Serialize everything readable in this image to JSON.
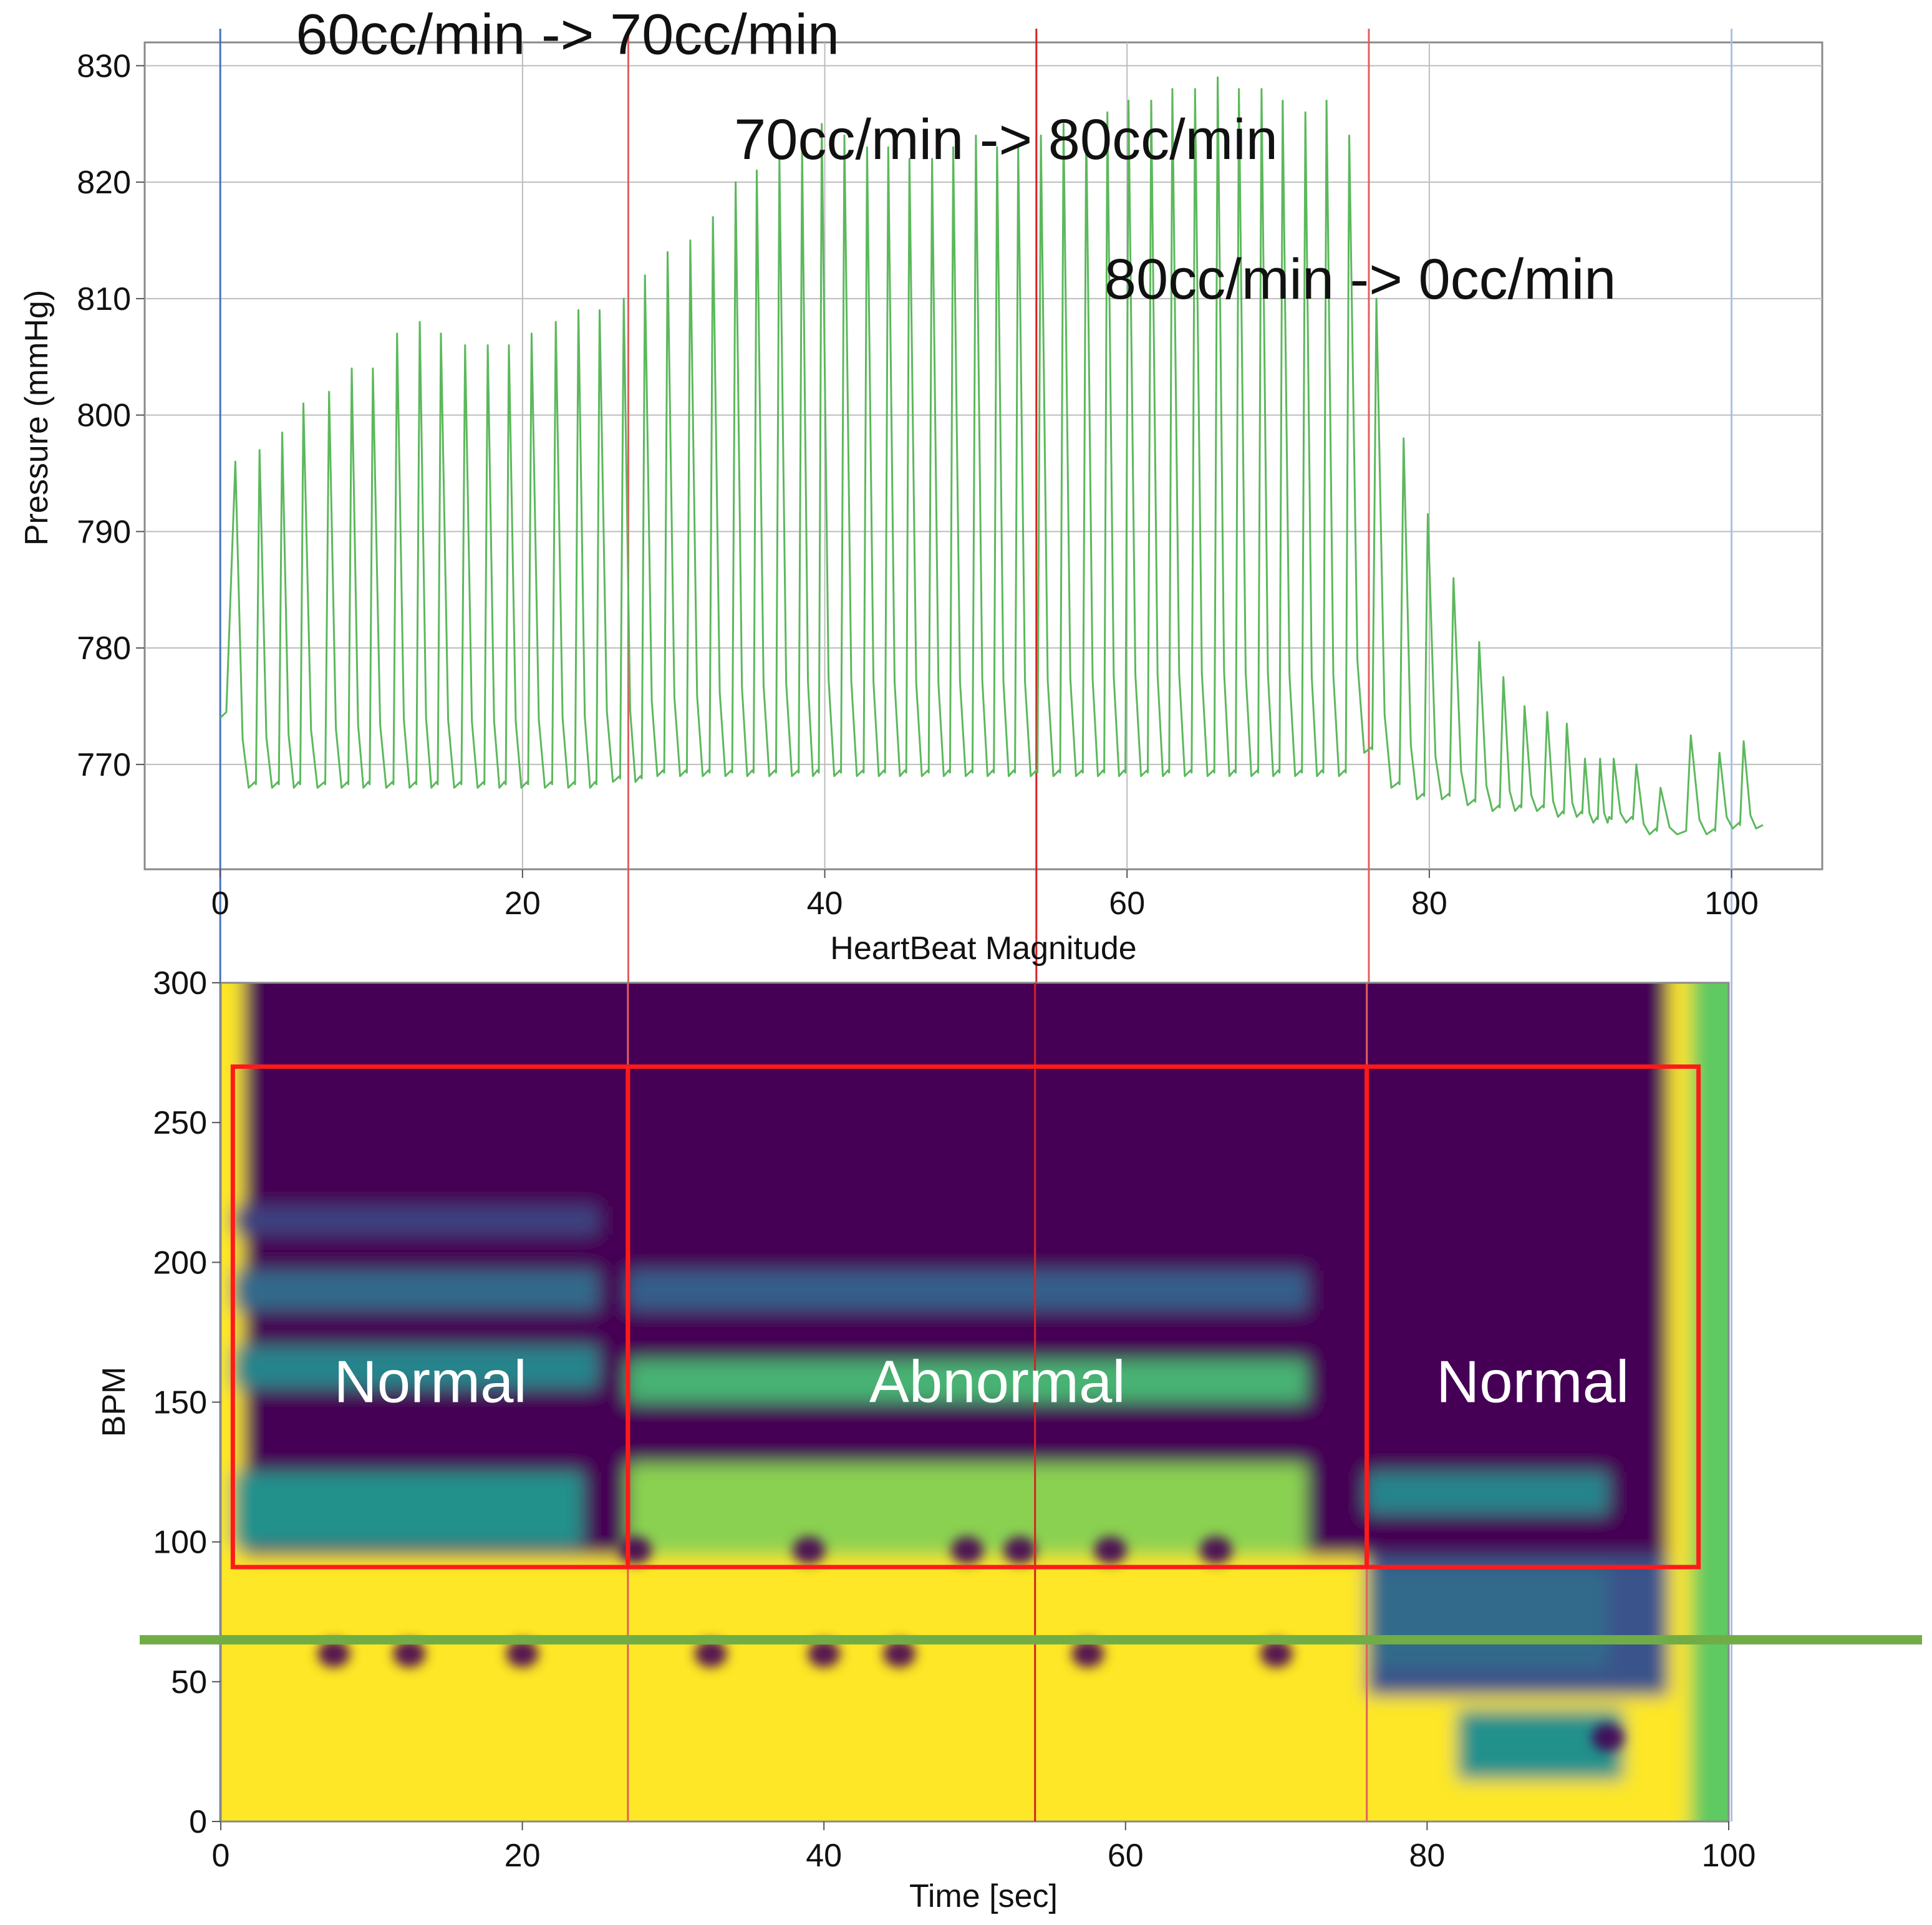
{
  "chart_data": [
    {
      "type": "line",
      "title": "",
      "xlabel": "HeartBeat Magnitude",
      "ylabel": "Pressure (mmHg)",
      "xlim": [
        -5,
        106
      ],
      "ylim": [
        761,
        832
      ],
      "x_ticks": [
        0,
        20,
        40,
        60,
        80,
        100
      ],
      "y_ticks": [
        770,
        780,
        790,
        800,
        810,
        820,
        830
      ],
      "grid": true,
      "series": [
        {
          "name": "pressure",
          "color": "#5cb85c",
          "beats": [
            {
              "t": 1,
              "peak": 796,
              "trough": 768
            },
            {
              "t": 2.6,
              "peak": 797,
              "trough": 768
            },
            {
              "t": 4.1,
              "peak": 798.5,
              "trough": 768
            },
            {
              "t": 5.5,
              "peak": 801,
              "trough": 768
            },
            {
              "t": 7.2,
              "peak": 802,
              "trough": 768
            },
            {
              "t": 8.7,
              "peak": 804,
              "trough": 768
            },
            {
              "t": 10.1,
              "peak": 804,
              "trough": 768
            },
            {
              "t": 11.7,
              "peak": 807,
              "trough": 768
            },
            {
              "t": 13.2,
              "peak": 808,
              "trough": 768
            },
            {
              "t": 14.6,
              "peak": 807,
              "trough": 768
            },
            {
              "t": 16.2,
              "peak": 806,
              "trough": 768
            },
            {
              "t": 17.7,
              "peak": 806,
              "trough": 768
            },
            {
              "t": 19.1,
              "peak": 806,
              "trough": 768
            },
            {
              "t": 20.6,
              "peak": 807,
              "trough": 768
            },
            {
              "t": 22.2,
              "peak": 808,
              "trough": 768
            },
            {
              "t": 23.7,
              "peak": 809,
              "trough": 768
            },
            {
              "t": 25.1,
              "peak": 809,
              "trough": 768.5
            },
            {
              "t": 26.7,
              "peak": 810,
              "trough": 768.5
            },
            {
              "t": 28.1,
              "peak": 812,
              "trough": 769
            },
            {
              "t": 29.6,
              "peak": 814,
              "trough": 769
            },
            {
              "t": 31.1,
              "peak": 815,
              "trough": 769
            },
            {
              "t": 32.6,
              "peak": 817,
              "trough": 769
            },
            {
              "t": 34.1,
              "peak": 820,
              "trough": 769
            },
            {
              "t": 35.5,
              "peak": 821,
              "trough": 769
            },
            {
              "t": 37,
              "peak": 822,
              "trough": 769
            },
            {
              "t": 38.5,
              "peak": 823,
              "trough": 769
            },
            {
              "t": 39.8,
              "peak": 825,
              "trough": 769
            },
            {
              "t": 41.3,
              "peak": 824,
              "trough": 769
            },
            {
              "t": 42.8,
              "peak": 823,
              "trough": 769
            },
            {
              "t": 44.2,
              "peak": 823,
              "trough": 769
            },
            {
              "t": 45.6,
              "peak": 822,
              "trough": 769
            },
            {
              "t": 47.1,
              "peak": 822,
              "trough": 769
            },
            {
              "t": 48.5,
              "peak": 823,
              "trough": 769
            },
            {
              "t": 50,
              "peak": 824,
              "trough": 769
            },
            {
              "t": 51.4,
              "peak": 823,
              "trough": 769
            },
            {
              "t": 52.8,
              "peak": 823,
              "trough": 769
            },
            {
              "t": 54.3,
              "peak": 824,
              "trough": 769
            },
            {
              "t": 55.8,
              "peak": 825,
              "trough": 769
            },
            {
              "t": 57.3,
              "peak": 825,
              "trough": 769
            },
            {
              "t": 58.7,
              "peak": 826,
              "trough": 769
            },
            {
              "t": 60.1,
              "peak": 827,
              "trough": 769
            },
            {
              "t": 61.6,
              "peak": 827,
              "trough": 769
            },
            {
              "t": 63,
              "peak": 828,
              "trough": 769
            },
            {
              "t": 64.5,
              "peak": 828,
              "trough": 769
            },
            {
              "t": 66,
              "peak": 829,
              "trough": 769
            },
            {
              "t": 67.4,
              "peak": 828,
              "trough": 769
            },
            {
              "t": 68.9,
              "peak": 828,
              "trough": 769
            },
            {
              "t": 70.3,
              "peak": 827,
              "trough": 769
            },
            {
              "t": 71.8,
              "peak": 826,
              "trough": 769
            },
            {
              "t": 73.2,
              "peak": 827,
              "trough": 769
            },
            {
              "t": 74.7,
              "peak": 824,
              "trough": 771
            },
            {
              "t": 76.5,
              "peak": 810,
              "trough": 768
            },
            {
              "t": 78.3,
              "peak": 798,
              "trough": 767
            },
            {
              "t": 79.9,
              "peak": 791.5,
              "trough": 767
            },
            {
              "t": 81.6,
              "peak": 786,
              "trough": 766.5
            },
            {
              "t": 83.3,
              "peak": 780.5,
              "trough": 766
            },
            {
              "t": 84.9,
              "peak": 777.5,
              "trough": 766
            },
            {
              "t": 86.3,
              "peak": 775,
              "trough": 766
            },
            {
              "t": 87.8,
              "peak": 774.5,
              "trough": 765.5
            },
            {
              "t": 89.1,
              "peak": 773.5,
              "trough": 765.5
            },
            {
              "t": 90.3,
              "peak": 770.5,
              "trough": 765
            },
            {
              "t": 91.3,
              "peak": 770.5,
              "trough": 765
            },
            {
              "t": 92.2,
              "peak": 770.5,
              "trough": 765
            },
            {
              "t": 93.7,
              "peak": 770,
              "trough": 764
            },
            {
              "t": 95.3,
              "peak": 768,
              "trough": 764
            },
            {
              "t": 97.3,
              "peak": 772.5,
              "trough": 764
            },
            {
              "t": 99.2,
              "peak": 771,
              "trough": 764.5
            },
            {
              "t": 100.8,
              "peak": 772,
              "trough": 764.5
            }
          ]
        }
      ],
      "annotations": [
        {
          "text": "60cc/min -> 70cc/min",
          "at_x": 5,
          "at_y": 831
        },
        {
          "text": "70cc/min -> 80cc/min",
          "at_x": 34,
          "at_y": 822
        },
        {
          "text": "80cc/min -> 0cc/min",
          "at_x": 58.5,
          "at_y": 810
        }
      ],
      "vlines": [
        {
          "x": 0,
          "color": "#4472c4"
        },
        {
          "x": 27,
          "color": "#e06060"
        },
        {
          "x": 54,
          "color": "#d92020"
        },
        {
          "x": 76,
          "color": "#e06060"
        },
        {
          "x": 100,
          "color": "#a8c0e8"
        }
      ]
    },
    {
      "type": "heatmap",
      "title": "",
      "xlabel": "Time [sec]",
      "ylabel": "BPM",
      "xlim": [
        0,
        100
      ],
      "ylim": [
        0,
        300
      ],
      "x_ticks": [
        0,
        20,
        40,
        60,
        80,
        100
      ],
      "y_ticks": [
        0,
        50,
        100,
        150,
        200,
        250,
        300
      ],
      "colormap": {
        "low": "#440154",
        "stops": [
          "#440154",
          "#3b528b",
          "#21918c",
          "#5ec962",
          "#fde725"
        ],
        "high": "#fde725"
      },
      "bands": [
        {
          "x0": 0.8,
          "x1": 25,
          "y0": 155,
          "y1": 170,
          "level": 0.45
        },
        {
          "x0": 0.8,
          "x1": 25,
          "y0": 183,
          "y1": 197,
          "level": 0.35
        },
        {
          "x0": 0.8,
          "x1": 25,
          "y0": 210,
          "y1": 220,
          "level": 0.2
        },
        {
          "x0": 0.8,
          "x1": 24,
          "y0": 98,
          "y1": 125,
          "level": 0.5
        },
        {
          "x0": 27,
          "x1": 72,
          "y0": 150,
          "y1": 165,
          "level": 0.65
        },
        {
          "x0": 27,
          "x1": 72,
          "y0": 183,
          "y1": 197,
          "level": 0.3
        },
        {
          "x0": 27,
          "x1": 72,
          "y0": 95,
          "y1": 128,
          "level": 0.82
        },
        {
          "x0": 76,
          "x1": 92,
          "y0": 110,
          "y1": 125,
          "level": 0.45
        },
        {
          "x0": 76,
          "x1": 92,
          "y0": 55,
          "y1": 90,
          "level": 0.35
        },
        {
          "x0": 82,
          "x1": 93,
          "y0": 15,
          "y1": 40,
          "level": 0.5
        }
      ],
      "dark_spots": [
        {
          "x": 7.5,
          "y": 60
        },
        {
          "x": 12.5,
          "y": 60
        },
        {
          "x": 20,
          "y": 60
        },
        {
          "x": 32.5,
          "y": 60
        },
        {
          "x": 40,
          "y": 60
        },
        {
          "x": 45,
          "y": 60
        },
        {
          "x": 57.5,
          "y": 60
        },
        {
          "x": 70,
          "y": 60
        },
        {
          "x": 27.5,
          "y": 97
        },
        {
          "x": 39,
          "y": 97
        },
        {
          "x": 49.5,
          "y": 97
        },
        {
          "x": 53,
          "y": 97
        },
        {
          "x": 59,
          "y": 97
        },
        {
          "x": 66,
          "y": 97
        },
        {
          "x": 92,
          "y": 30
        }
      ],
      "regions": [
        {
          "label": "Normal",
          "x0": 0.8,
          "x1": 27,
          "y0": 91,
          "y1": 270
        },
        {
          "label": "Abnormal",
          "x0": 27,
          "x1": 76,
          "y0": 91,
          "y1": 270
        },
        {
          "label": "Normal",
          "x0": 76,
          "x1": 98,
          "y0": 91,
          "y1": 270
        }
      ],
      "hline": {
        "y": 65,
        "color": "#70ad47"
      },
      "vlines": [
        {
          "x": 27,
          "color": "#e06060"
        },
        {
          "x": 54,
          "color": "#d92020"
        },
        {
          "x": 76,
          "color": "#e06060"
        }
      ],
      "tick_label_zero_x": "0",
      "tick_label_zero_y": "0"
    }
  ]
}
